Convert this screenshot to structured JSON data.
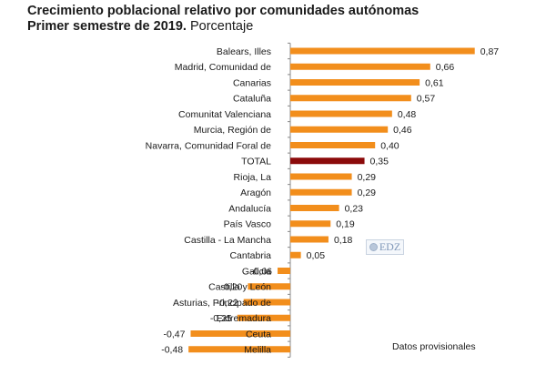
{
  "chart_data": {
    "type": "bar",
    "orientation": "horizontal",
    "title": "Crecimiento poblacional relativo por comunidades autónomas",
    "subtitle_bold": "Primer semestre de 2019.",
    "subtitle_normal": "Porcentaje",
    "xlabel": "",
    "ylabel": "",
    "categories": [
      "Balears, Illes",
      "Madrid, Comunidad de",
      "Canarias",
      "Cataluña",
      "Comunitat Valenciana",
      "Murcia, Región de",
      "Navarra, Comunidad Foral de",
      "TOTAL",
      "Rioja, La",
      "Aragón",
      "Andalucía",
      "País Vasco",
      "Castilla - La Mancha",
      "Cantabria",
      "Galicia",
      "Castilla y León",
      "Asturias, Principado de",
      "Extremadura",
      "Ceuta",
      "Melilla"
    ],
    "values": [
      0.87,
      0.66,
      0.61,
      0.57,
      0.48,
      0.46,
      0.4,
      0.35,
      0.29,
      0.29,
      0.23,
      0.19,
      0.18,
      0.05,
      -0.06,
      -0.2,
      -0.22,
      -0.25,
      -0.47,
      -0.48
    ],
    "value_labels": [
      "0,87",
      "0,66",
      "0,61",
      "0,57",
      "0,48",
      "0,46",
      "0,40",
      "0,35",
      "0,29",
      "0,29",
      "0,23",
      "0,19",
      "0,18",
      "0,05",
      "-0,06",
      "-0,20",
      "-0,22",
      "-0,25",
      "-0,47",
      "-0,48"
    ],
    "highlight_category": "TOTAL",
    "xlim": [
      -0.5,
      0.9
    ],
    "grid": false,
    "legend": "none",
    "colors": {
      "bar": "#f28e1c",
      "highlight": "#8b0a0a",
      "axis": "#888888"
    }
  },
  "watermark": {
    "text": "EDZ"
  },
  "footnote": "Datos provisionales"
}
